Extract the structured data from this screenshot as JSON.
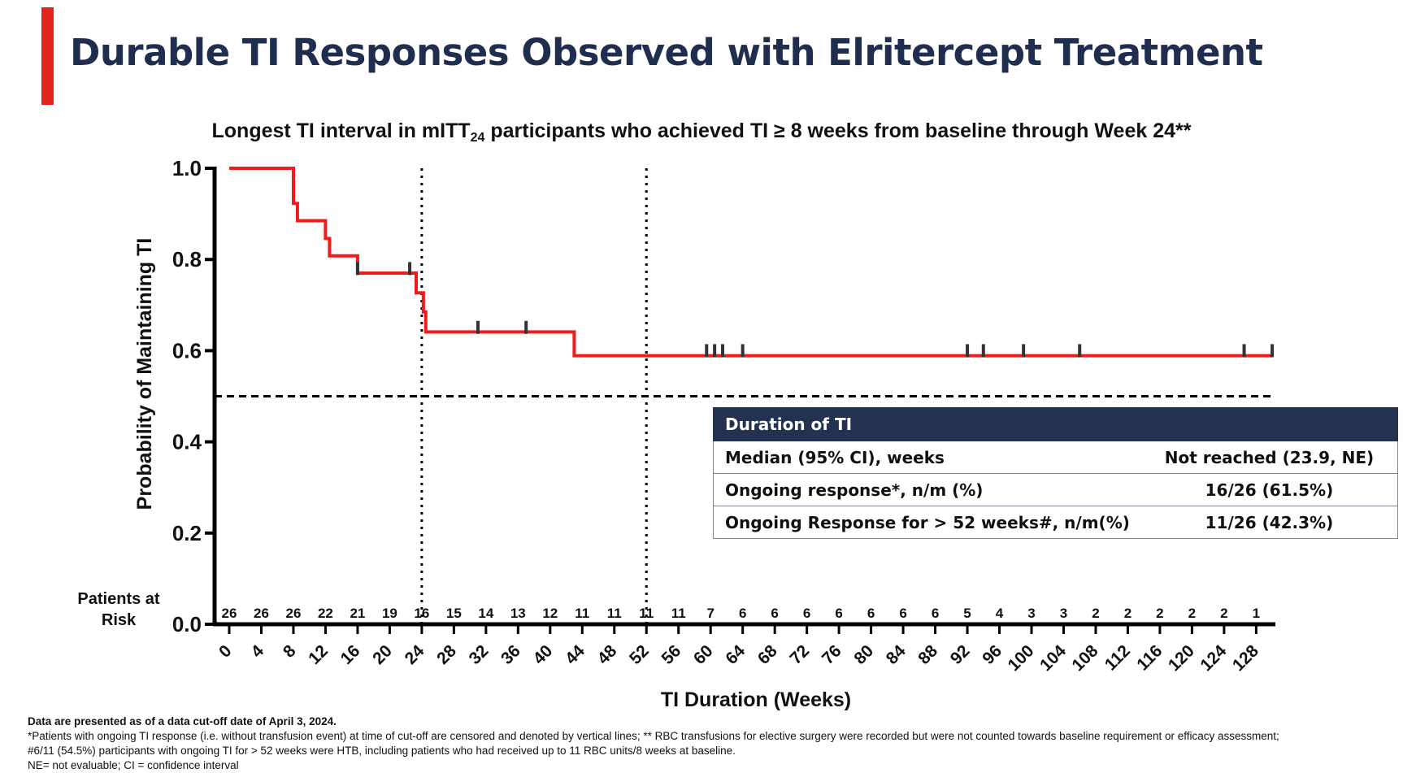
{
  "slide": {
    "title": "Durable TI Responses Observed with Elritercept Treatment",
    "accent_color": "#e1251b",
    "title_color": "#1f2d4e"
  },
  "chart_title": {
    "prefix": "Longest TI interval in mITT",
    "subscript": "24",
    "suffix": " participants who achieved TI ≥ 8 weeks from baseline through Week 24**"
  },
  "chart_data": {
    "type": "line",
    "subtype": "kaplan-meier",
    "xlabel": "TI Duration (Weeks)",
    "ylabel": "Probability of Maintaining TI",
    "xlim": [
      0,
      130
    ],
    "ylim": [
      0,
      1.0
    ],
    "x_ticks": [
      0,
      4,
      8,
      12,
      16,
      20,
      24,
      28,
      32,
      36,
      40,
      44,
      48,
      52,
      56,
      60,
      64,
      68,
      72,
      76,
      80,
      84,
      88,
      92,
      96,
      100,
      104,
      108,
      112,
      116,
      120,
      124,
      128
    ],
    "y_ticks": [
      0.0,
      0.2,
      0.4,
      0.6,
      0.8,
      1.0
    ],
    "y_tick_labels": [
      "0.0",
      "0.2",
      "0.4",
      "0.6",
      "0.8",
      "1.0"
    ],
    "series": [
      {
        "color": "#ee1c1c",
        "steps": [
          [
            0,
            1.0
          ],
          [
            8,
            1.0
          ],
          [
            8,
            0.923
          ],
          [
            8.5,
            0.923
          ],
          [
            8.5,
            0.885
          ],
          [
            12,
            0.885
          ],
          [
            12,
            0.846
          ],
          [
            12.5,
            0.846
          ],
          [
            12.5,
            0.808
          ],
          [
            16,
            0.808
          ],
          [
            16,
            0.77
          ],
          [
            23.3,
            0.77
          ],
          [
            23.3,
            0.727
          ],
          [
            24.2,
            0.727
          ],
          [
            24.2,
            0.685
          ],
          [
            24.5,
            0.685
          ],
          [
            24.5,
            0.641
          ],
          [
            43,
            0.641
          ],
          [
            43,
            0.589
          ],
          [
            130,
            0.589
          ]
        ],
        "censored": [
          [
            16,
            0.78
          ],
          [
            22.5,
            0.78
          ],
          [
            31,
            0.651
          ],
          [
            37,
            0.651
          ],
          [
            59.5,
            0.6
          ],
          [
            60.5,
            0.6
          ],
          [
            61.5,
            0.6
          ],
          [
            64,
            0.6
          ],
          [
            92,
            0.6
          ],
          [
            94,
            0.6
          ],
          [
            99,
            0.6
          ],
          [
            106,
            0.6
          ],
          [
            126.5,
            0.6
          ],
          [
            130,
            0.6
          ]
        ]
      }
    ],
    "reference_lines": {
      "horizontal_y": 0.5,
      "vertical_x": [
        24,
        52
      ]
    },
    "at_risk": {
      "label": "Patients at Risk",
      "values": [
        "26",
        "26",
        "26",
        "22",
        "21",
        "19",
        "16",
        "15",
        "14",
        "13",
        "12",
        "11",
        "11",
        "11",
        "11",
        "7",
        "6",
        "6",
        "6",
        "6",
        "6",
        "6",
        "6",
        "5",
        "4",
        "3",
        "3",
        "2",
        "2",
        "2",
        "2",
        "2",
        "1"
      ]
    }
  },
  "table": {
    "header": "Duration of TI",
    "rows": [
      {
        "label": "Median (95% CI), weeks",
        "value": "Not reached (23.9, NE)"
      },
      {
        "label": "Ongoing response*, n/m (%)",
        "value": "16/26 (61.5%)"
      },
      {
        "label": "Ongoing Response for > 52 weeks#, n/m(%)",
        "value": "11/26 (42.3%)"
      }
    ]
  },
  "footnotes": [
    "Data are presented as of a data cut-off date of April 3, 2024.",
    "*Patients with ongoing TI response (i.e. without transfusion event) at time of cut-off are censored and denoted by vertical lines; ** RBC transfusions for elective surgery were recorded but were not counted towards baseline requirement or efficacy assessment;",
    "#6/11 (54.5%) participants with ongoing TI for > 52 weeks were HTB, including patients who had received up to 11 RBC units/8 weeks at baseline.",
    "NE= not evaluable; CI = confidence interval"
  ]
}
